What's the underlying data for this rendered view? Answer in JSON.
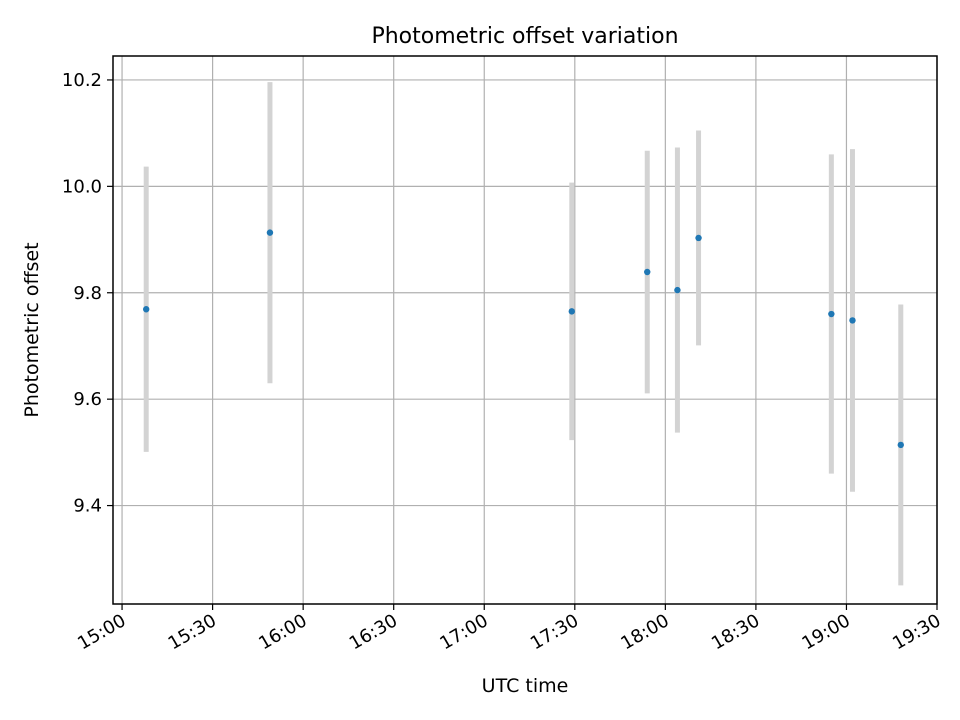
{
  "chart_data": {
    "type": "scatter",
    "title": "Photometric offset variation",
    "xlabel": "UTC time",
    "ylabel": "Photometric offset",
    "x_ticks": [
      "15:00",
      "15:30",
      "16:00",
      "16:30",
      "17:00",
      "17:30",
      "18:00",
      "18:30",
      "19:00",
      "19:30"
    ],
    "y_ticks": [
      "9.4",
      "9.6",
      "9.8",
      "10.0",
      "10.2"
    ],
    "xlim": [
      "14:57",
      "19:30"
    ],
    "ylim": [
      9.215,
      10.245
    ],
    "grid": true,
    "marker_color": "#1f77b4",
    "errorbar_color": "#d3d3d3",
    "series": [
      {
        "points": [
          {
            "x": "15:08",
            "y": 9.769,
            "yerr": 0.268
          },
          {
            "x": "15:49",
            "y": 9.913,
            "yerr": 0.283
          },
          {
            "x": "17:29",
            "y": 9.765,
            "yerr": 0.242
          },
          {
            "x": "17:54",
            "y": 9.839,
            "yerr": 0.228
          },
          {
            "x": "18:04",
            "y": 9.805,
            "yerr": 0.268
          },
          {
            "x": "18:11",
            "y": 9.903,
            "yerr": 0.202
          },
          {
            "x": "18:55",
            "y": 9.76,
            "yerr": 0.3
          },
          {
            "x": "19:02",
            "y": 9.748,
            "yerr": 0.322
          },
          {
            "x": "19:18",
            "y": 9.514,
            "yerr": 0.264
          }
        ]
      }
    ]
  }
}
